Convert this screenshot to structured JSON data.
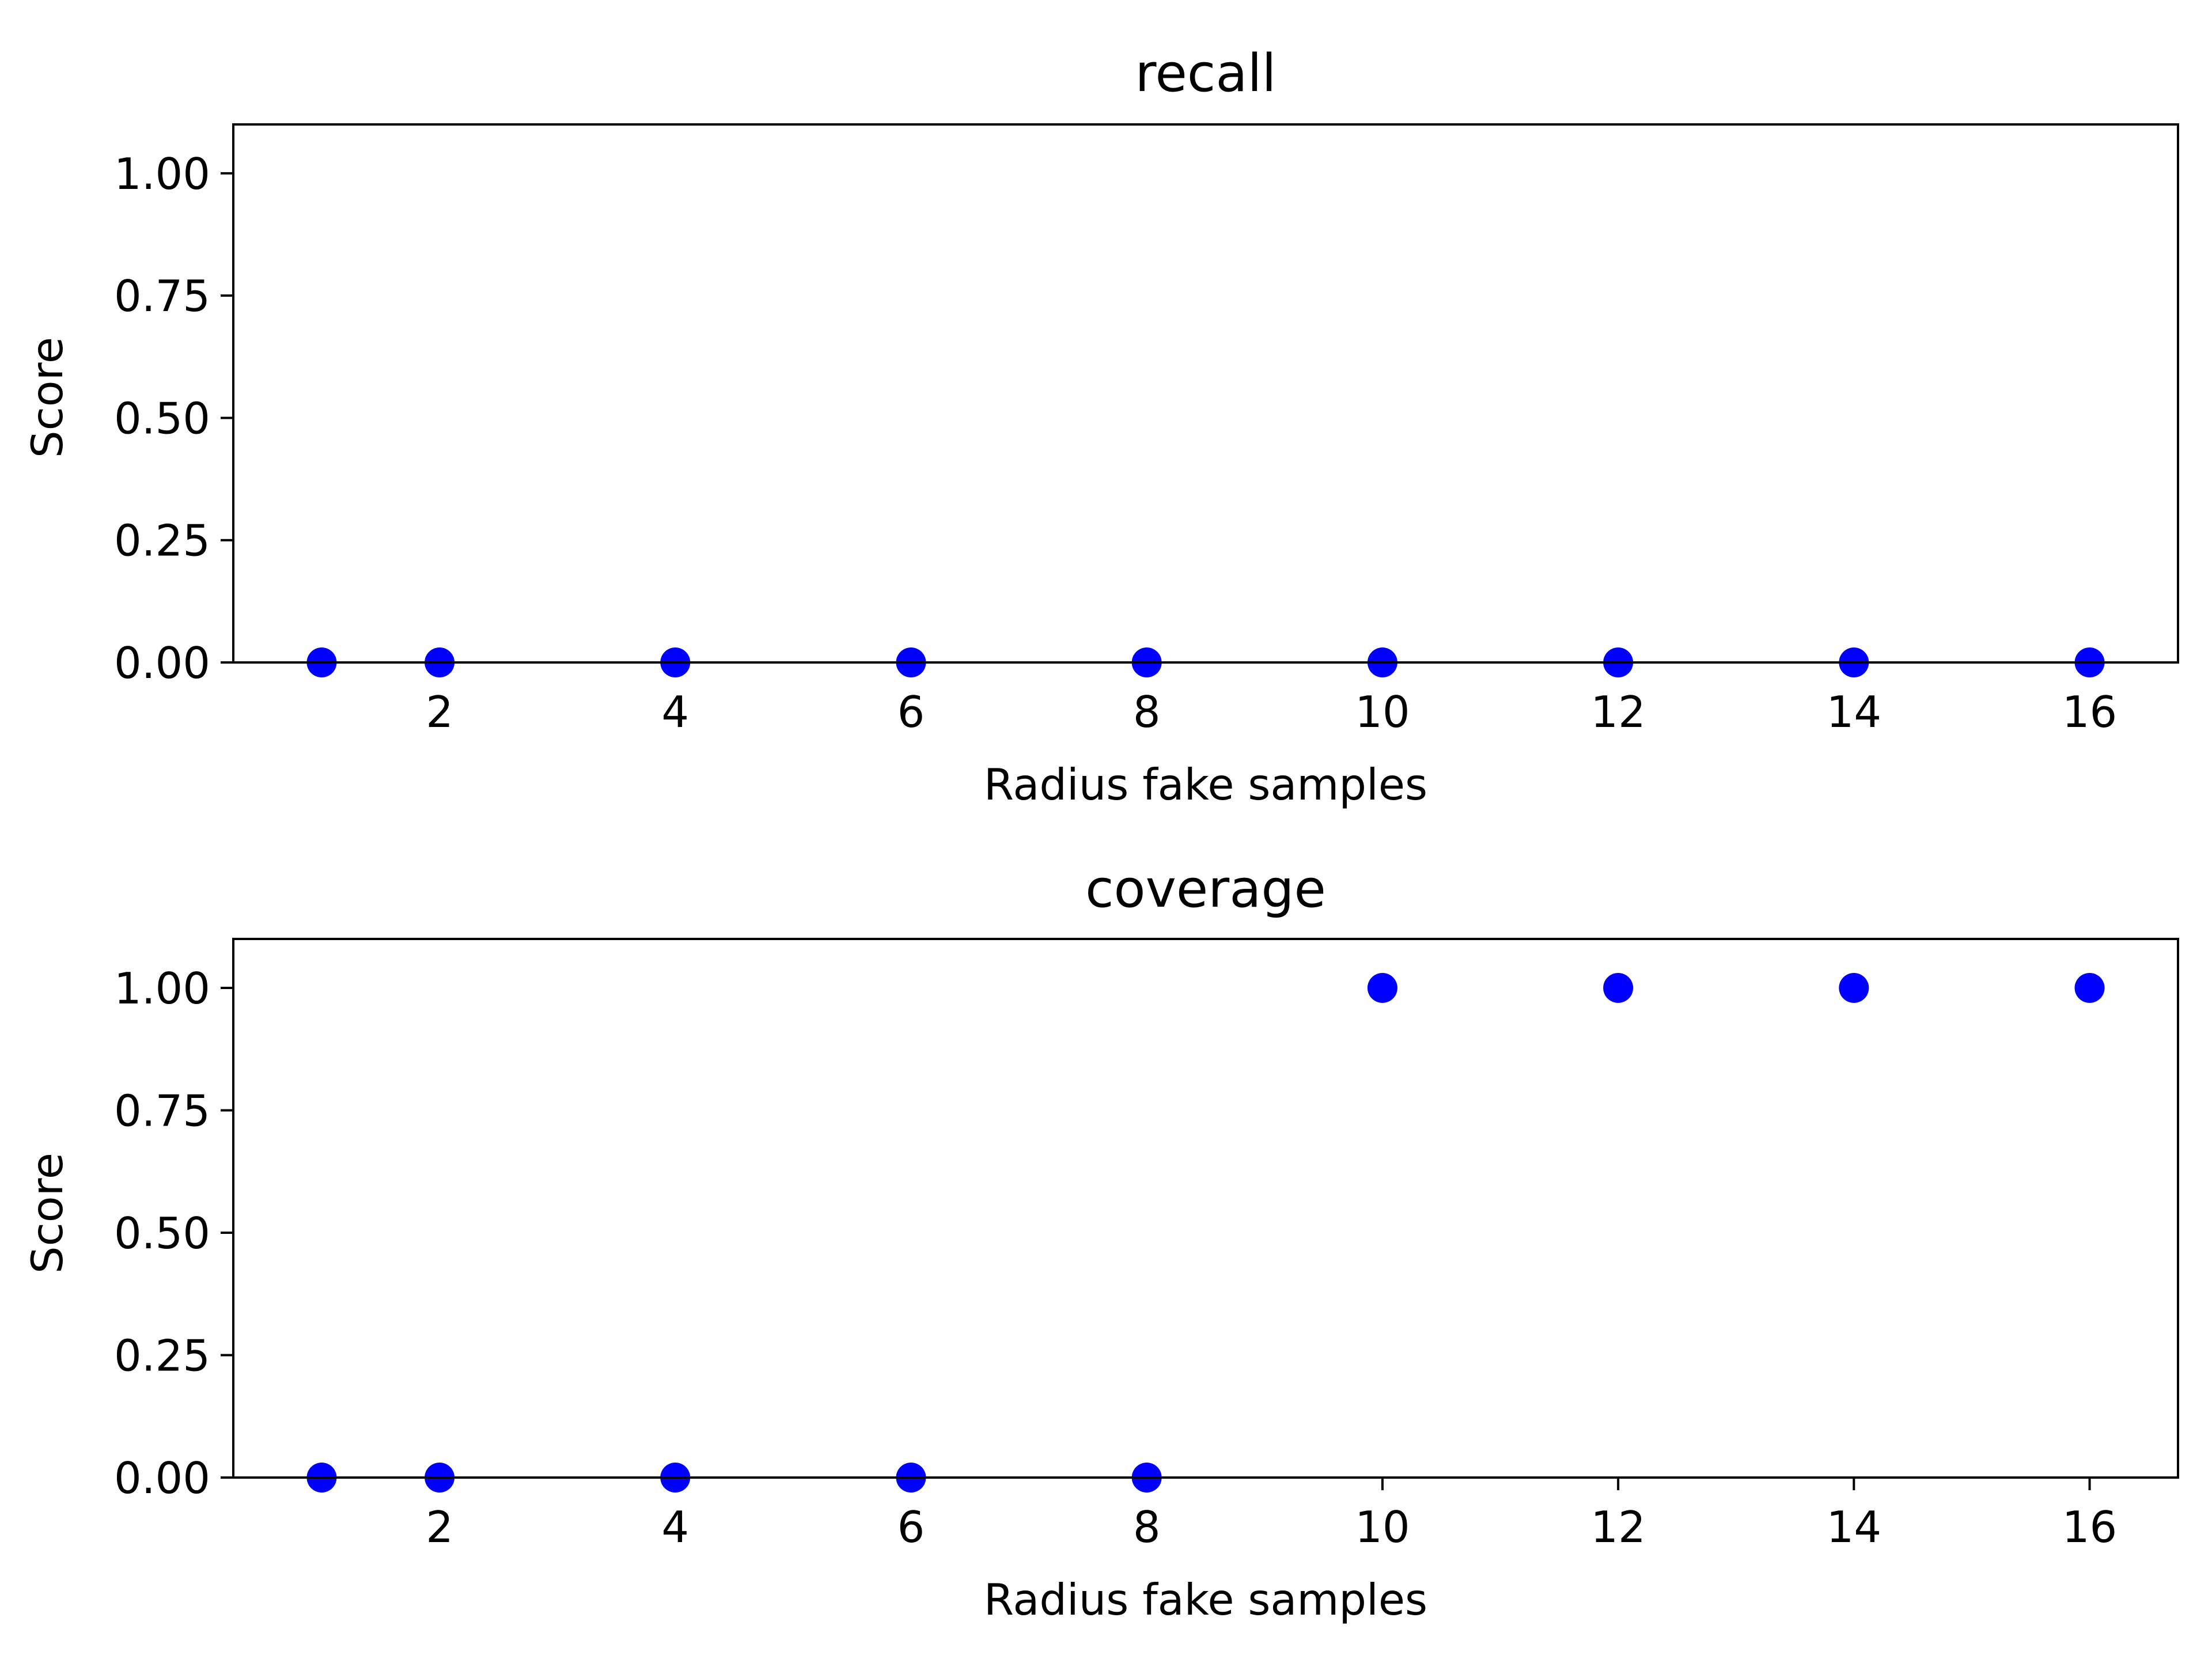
{
  "chart_data": [
    {
      "type": "scatter",
      "title": "recall",
      "xlabel": "Radius fake samples",
      "ylabel": "Score",
      "x": [
        1,
        2,
        4,
        6,
        8,
        10,
        12,
        14,
        16
      ],
      "series": [
        {
          "values": [
            0,
            0,
            0,
            0,
            0,
            0,
            0,
            0,
            0
          ]
        }
      ],
      "xlim": [
        0.25,
        16.75
      ],
      "ylim": [
        0,
        1.1
      ],
      "xticks": [
        2,
        4,
        6,
        8,
        10,
        12,
        14,
        16
      ],
      "yticks": [
        0,
        0.25,
        0.5,
        0.75,
        1.0
      ],
      "xtick_labels": [
        "2",
        "4",
        "6",
        "8",
        "10",
        "12",
        "14",
        "16"
      ],
      "ytick_labels": [
        "0.00",
        "0.25",
        "0.50",
        "0.75",
        "1.00"
      ],
      "marker_color": "#0000ff",
      "grid": false,
      "legend": "none"
    },
    {
      "type": "scatter",
      "title": "coverage",
      "xlabel": "Radius fake samples",
      "ylabel": "Score",
      "x": [
        1,
        2,
        4,
        6,
        8,
        10,
        12,
        14,
        16
      ],
      "series": [
        {
          "values": [
            0,
            0,
            0,
            0,
            0,
            1,
            1,
            1,
            1
          ]
        }
      ],
      "xlim": [
        0.25,
        16.75
      ],
      "ylim": [
        0,
        1.1
      ],
      "xticks": [
        2,
        4,
        6,
        8,
        10,
        12,
        14,
        16
      ],
      "yticks": [
        0,
        0.25,
        0.5,
        0.75,
        1.0
      ],
      "xtick_labels": [
        "2",
        "4",
        "6",
        "8",
        "10",
        "12",
        "14",
        "16"
      ],
      "ytick_labels": [
        "0.00",
        "0.25",
        "0.50",
        "0.75",
        "1.00"
      ],
      "marker_color": "#0000ff",
      "grid": false,
      "legend": "none"
    }
  ]
}
